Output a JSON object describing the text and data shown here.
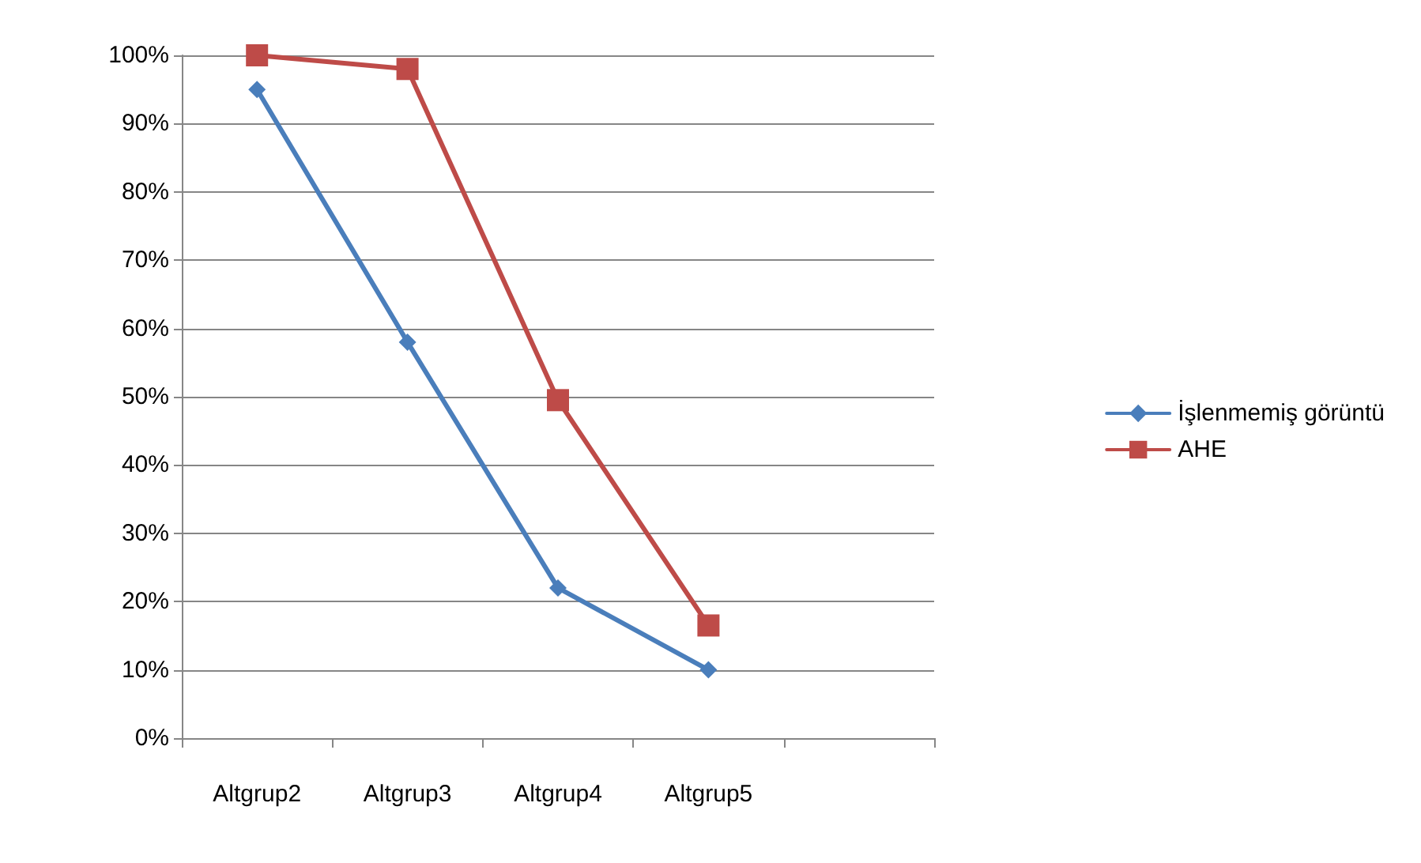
{
  "chart_data": {
    "type": "line",
    "categories": [
      "Altgrup2",
      "Altgrup3",
      "Altgrup4",
      "Altgrup5",
      null
    ],
    "series": [
      {
        "name": "İşlenmemiş görüntü",
        "color": "#4a7ebb",
        "values": [
          95,
          58,
          22,
          10,
          null
        ],
        "marker": "diamond"
      },
      {
        "name": "AHE",
        "color": "#be4b48",
        "values": [
          100,
          98,
          49.5,
          16.5,
          null
        ],
        "marker": "square"
      }
    ],
    "ylim": [
      0,
      100
    ],
    "yticks": [
      {
        "value": 0,
        "label": "0%"
      },
      {
        "value": 10,
        "label": "10%"
      },
      {
        "value": 20,
        "label": "20%"
      },
      {
        "value": 30,
        "label": "30%"
      },
      {
        "value": 40,
        "label": "40%"
      },
      {
        "value": 50,
        "label": "50%"
      },
      {
        "value": 60,
        "label": "60%"
      },
      {
        "value": 70,
        "label": "70%"
      },
      {
        "value": 80,
        "label": "80%"
      },
      {
        "value": 90,
        "label": "90%"
      },
      {
        "value": 100,
        "label": "100%"
      }
    ],
    "grid": "y",
    "legend": "right",
    "line_style": "solid"
  }
}
